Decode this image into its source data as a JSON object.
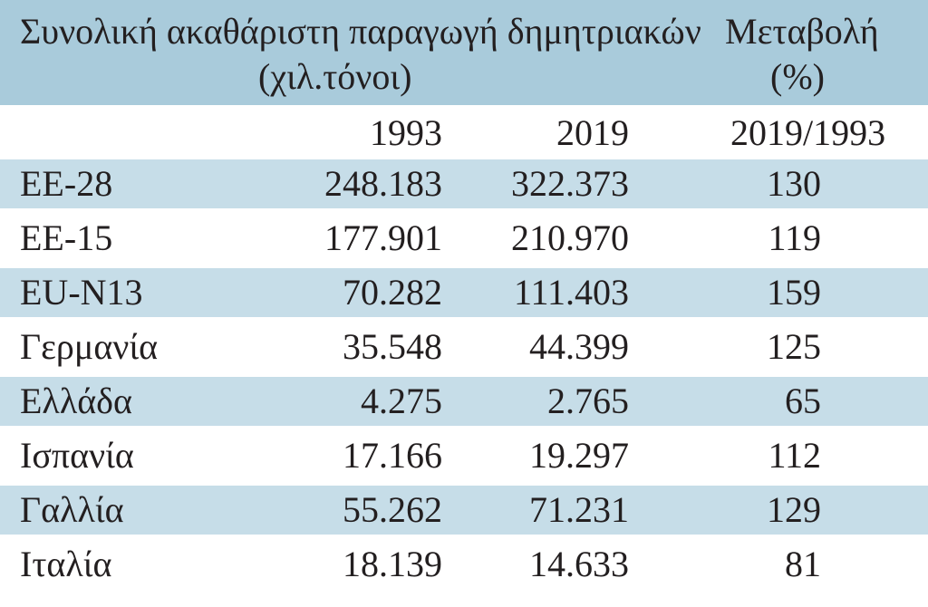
{
  "header": {
    "title_line1": "Συνολική ακαθάριστη παραγωγή δημητριακών",
    "title_line2": "(χιλ.τόνοι)",
    "change_line1": "Μεταβολή",
    "change_line2": "(%)"
  },
  "subheader": {
    "year1": "1993",
    "year2": "2019",
    "change_period": "2019/1993"
  },
  "rows": [
    {
      "name": "ΕΕ-28",
      "v1993": "248.183",
      "v2019": "322.373",
      "change": "130"
    },
    {
      "name": "ΕΕ-15",
      "v1993": "177.901",
      "v2019": "210.970",
      "change": "119"
    },
    {
      "name": "EU-N13",
      "v1993": "70.282",
      "v2019": "111.403",
      "change": "159"
    },
    {
      "name": "Γερμανία",
      "v1993": "35.548",
      "v2019": "44.399",
      "change": "125"
    },
    {
      "name": "Ελλάδα",
      "v1993": "4.275",
      "v2019": "2.765",
      "change": "65"
    },
    {
      "name": "Ισπανία",
      "v1993": "17.166",
      "v2019": "19.297",
      "change": "112"
    },
    {
      "name": "Γαλλία",
      "v1993": "55.262",
      "v2019": "71.231",
      "change": "129"
    },
    {
      "name": "Ιταλία",
      "v1993": "18.139",
      "v2019": "14.633",
      "change": "81"
    }
  ],
  "colors": {
    "header_bg": "#a9cbdb",
    "shade_bg": "#c6dde8",
    "text": "#231f20"
  }
}
